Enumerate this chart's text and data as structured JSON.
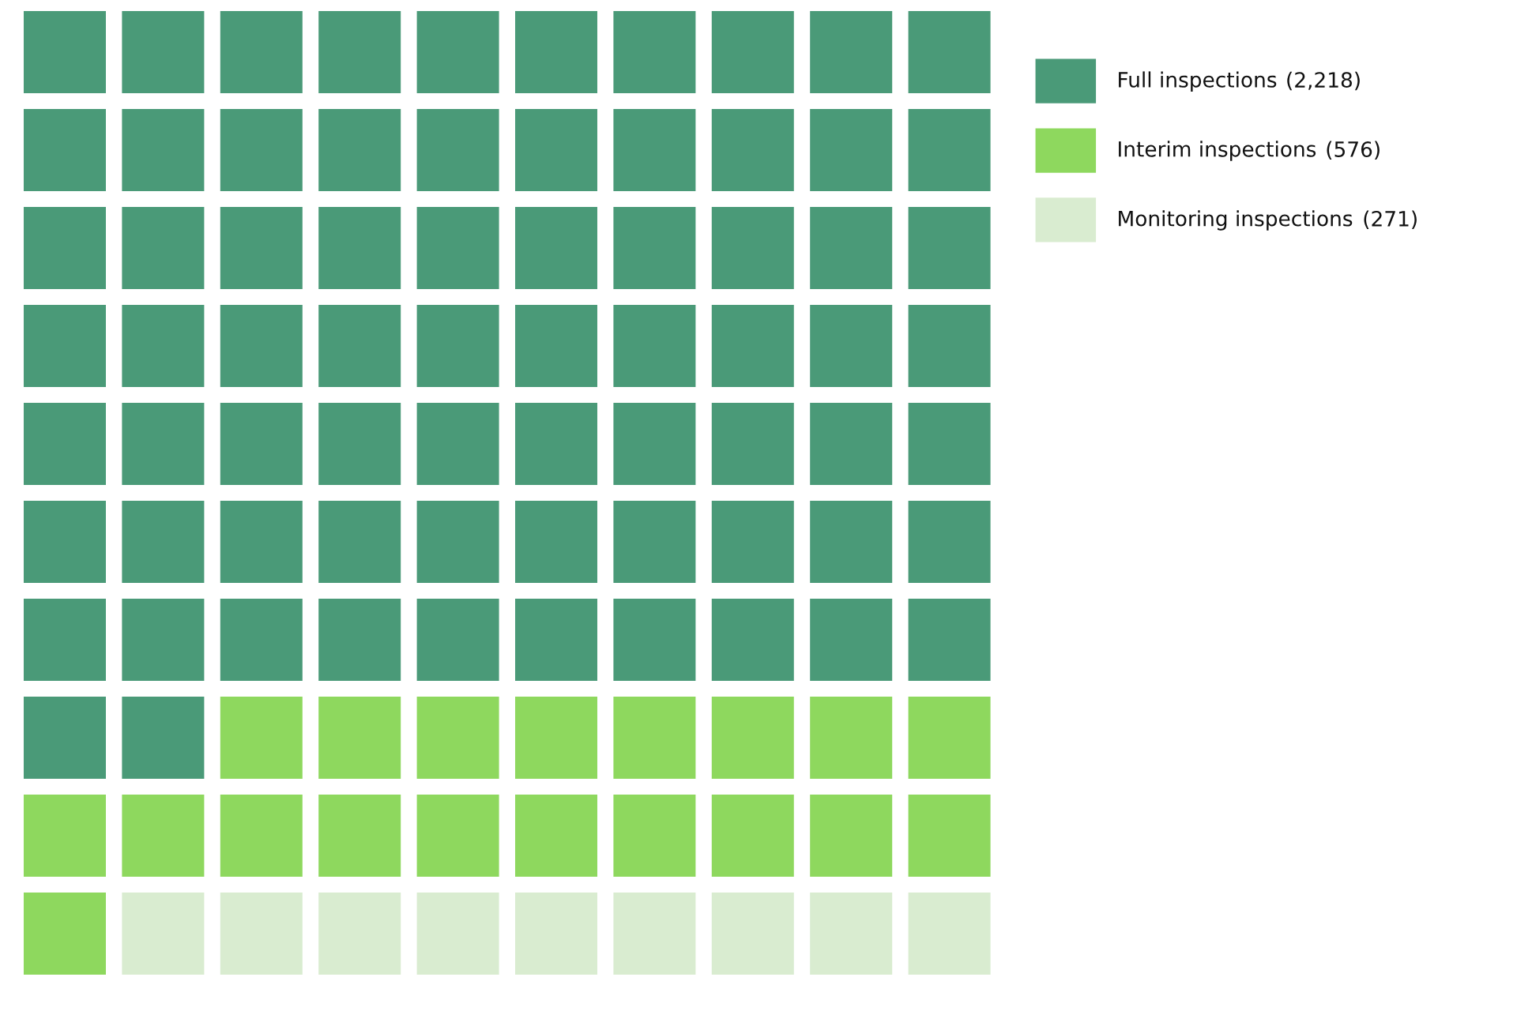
{
  "chart_data": {
    "type": "other",
    "categories": [
      null
    ],
    "series": [
      {
        "name": "Full inspections",
        "color": "#4a9a78",
        "values": [
          2218
        ],
        "value_labels": [
          "(2,218)"
        ]
      },
      {
        "name": "Interim inspections",
        "color": "#8ed85e",
        "values": [
          576
        ],
        "value_labels": [
          "(576)"
        ]
      },
      {
        "name": "Monitoring inspections",
        "color": "#d9ecd0",
        "values": [
          271
        ],
        "value_labels": [
          "(271)"
        ]
      }
    ],
    "legend": "right"
  }
}
